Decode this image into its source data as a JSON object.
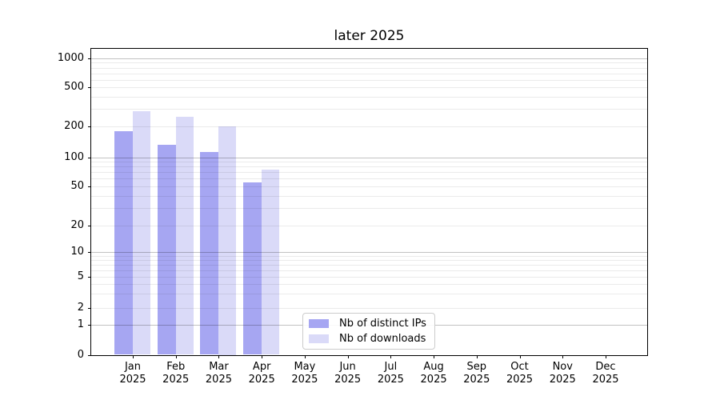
{
  "figure": {
    "background": "#ffffff"
  },
  "chart_data": {
    "type": "bar",
    "title": "later 2025",
    "xlabel": "",
    "ylabel": "",
    "x_categories": [
      "Jan",
      "Feb",
      "Mar",
      "Apr",
      "May",
      "Jun",
      "Jul",
      "Aug",
      "Sep",
      "Oct",
      "Nov",
      "Dec"
    ],
    "x_year": "2025",
    "series": [
      {
        "name": "Nb of distinct IPs",
        "color": "#a6a6f2",
        "values": [
          180,
          133,
          112,
          55,
          null,
          null,
          null,
          null,
          null,
          null,
          null,
          null
        ]
      },
      {
        "name": "Nb of downloads",
        "color": "#dadaf8",
        "values": [
          285,
          250,
          200,
          75,
          null,
          null,
          null,
          null,
          null,
          null,
          null,
          null
        ]
      }
    ],
    "yaxis": {
      "scale": "symlog-like",
      "tick_values": [
        1000,
        500,
        200,
        100,
        50,
        20,
        10,
        5,
        2,
        1,
        0
      ],
      "tick_labels": [
        "1000",
        "500",
        "200",
        "100",
        "50",
        "20",
        "10",
        "5",
        "2",
        "1",
        "0"
      ],
      "major_grid_values": [
        1,
        10,
        100,
        1000
      ],
      "minor_grid_subs": [
        2,
        3,
        4,
        5,
        6,
        7,
        8,
        9
      ],
      "range_approx": [
        0,
        1300
      ]
    },
    "grid": "on, drawn above bars",
    "legend": {
      "position": "lower center-left inside axes",
      "entries": [
        "Nb of distinct IPs",
        "Nb of downloads"
      ]
    },
    "colors": {
      "major_grid": "rgba(0,0,0,0.24)",
      "minor_grid": "rgba(0,0,0,0.08)",
      "spine": "#000000",
      "text": "#000000",
      "legend_border": "#cccccc"
    }
  }
}
